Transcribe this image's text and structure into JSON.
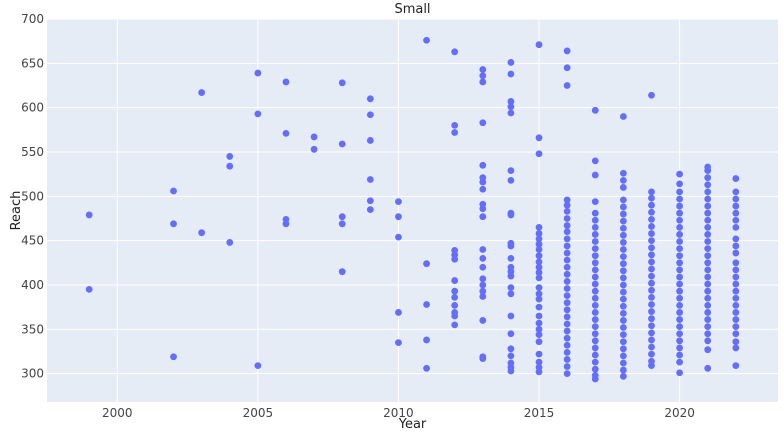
{
  "chart_data": {
    "type": "scatter",
    "title": "Small",
    "xlabel": "Year",
    "ylabel": "Reach",
    "xlim": [
      1997.5,
      2023.5
    ],
    "ylim": [
      268,
      700
    ],
    "xticks": [
      2000,
      2005,
      2010,
      2015,
      2020
    ],
    "xtick_labels": [
      "2000",
      "2005",
      "2010",
      "2015",
      "2020"
    ],
    "yticks": [
      300,
      350,
      400,
      450,
      500,
      550,
      600,
      650,
      700
    ],
    "ytick_labels": [
      "300",
      "350",
      "400",
      "450",
      "500",
      "550",
      "600",
      "650",
      "700"
    ],
    "grid": true,
    "legend": "none",
    "colors": {
      "marker": "#636efa",
      "plot_bg": "#e5ecf6",
      "grid": "#ffffff"
    },
    "series": [
      {
        "points": [
          [
            1999,
            479
          ],
          [
            1999,
            395
          ],
          [
            2002,
            506
          ],
          [
            2002,
            469
          ],
          [
            2002,
            319
          ],
          [
            2003,
            617
          ],
          [
            2003,
            459
          ],
          [
            2004,
            545
          ],
          [
            2004,
            534
          ],
          [
            2004,
            448
          ],
          [
            2005,
            639
          ],
          [
            2005,
            593
          ],
          [
            2005,
            309
          ],
          [
            2006,
            629
          ],
          [
            2006,
            571
          ],
          [
            2006,
            474
          ],
          [
            2006,
            469
          ],
          [
            2007,
            567
          ],
          [
            2007,
            553
          ],
          [
            2008,
            628
          ],
          [
            2008,
            559
          ],
          [
            2008,
            477
          ],
          [
            2008,
            469
          ],
          [
            2008,
            415
          ],
          [
            2009,
            610
          ],
          [
            2009,
            592
          ],
          [
            2009,
            563
          ],
          [
            2009,
            519
          ],
          [
            2009,
            495
          ],
          [
            2009,
            485
          ],
          [
            2010,
            494
          ],
          [
            2010,
            477
          ],
          [
            2010,
            454
          ],
          [
            2010,
            369
          ],
          [
            2010,
            335
          ],
          [
            2011,
            676
          ],
          [
            2011,
            424
          ],
          [
            2011,
            378
          ],
          [
            2011,
            338
          ],
          [
            2011,
            306
          ],
          [
            2012,
            663
          ],
          [
            2012,
            580
          ],
          [
            2012,
            572
          ],
          [
            2012,
            439
          ],
          [
            2012,
            434
          ],
          [
            2012,
            429
          ],
          [
            2012,
            405
          ],
          [
            2012,
            393
          ],
          [
            2012,
            386
          ],
          [
            2012,
            377
          ],
          [
            2012,
            369
          ],
          [
            2012,
            365
          ],
          [
            2012,
            355
          ],
          [
            2013,
            643
          ],
          [
            2013,
            636
          ],
          [
            2013,
            629
          ],
          [
            2013,
            583
          ],
          [
            2013,
            535
          ],
          [
            2013,
            521
          ],
          [
            2013,
            516
          ],
          [
            2013,
            508
          ],
          [
            2013,
            491
          ],
          [
            2013,
            486
          ],
          [
            2013,
            477
          ],
          [
            2013,
            440
          ],
          [
            2013,
            430
          ],
          [
            2013,
            420
          ],
          [
            2013,
            407
          ],
          [
            2013,
            400
          ],
          [
            2013,
            393
          ],
          [
            2013,
            387
          ],
          [
            2013,
            360
          ],
          [
            2013,
            319
          ],
          [
            2013,
            317
          ],
          [
            2014,
            651
          ],
          [
            2014,
            638
          ],
          [
            2014,
            607
          ],
          [
            2014,
            601
          ],
          [
            2014,
            594
          ],
          [
            2014,
            529
          ],
          [
            2014,
            518
          ],
          [
            2014,
            481
          ],
          [
            2014,
            479
          ],
          [
            2014,
            447
          ],
          [
            2014,
            444
          ],
          [
            2014,
            430
          ],
          [
            2014,
            420
          ],
          [
            2014,
            415
          ],
          [
            2014,
            410
          ],
          [
            2014,
            397
          ],
          [
            2014,
            390
          ],
          [
            2014,
            365
          ],
          [
            2014,
            345
          ],
          [
            2014,
            328
          ],
          [
            2014,
            320
          ],
          [
            2014,
            312
          ],
          [
            2014,
            307
          ],
          [
            2014,
            303
          ],
          [
            2015,
            671
          ],
          [
            2015,
            566
          ],
          [
            2015,
            548
          ],
          [
            2015,
            465
          ],
          [
            2015,
            458
          ],
          [
            2015,
            452
          ],
          [
            2015,
            446
          ],
          [
            2015,
            440
          ],
          [
            2015,
            433
          ],
          [
            2015,
            426
          ],
          [
            2015,
            420
          ],
          [
            2015,
            414
          ],
          [
            2015,
            408
          ],
          [
            2015,
            397
          ],
          [
            2015,
            390
          ],
          [
            2015,
            384
          ],
          [
            2015,
            375
          ],
          [
            2015,
            365
          ],
          [
            2015,
            357
          ],
          [
            2015,
            350
          ],
          [
            2015,
            344
          ],
          [
            2015,
            336
          ],
          [
            2015,
            322
          ],
          [
            2015,
            313
          ],
          [
            2015,
            307
          ],
          [
            2015,
            302
          ],
          [
            2016,
            664
          ],
          [
            2016,
            645
          ],
          [
            2016,
            625
          ],
          [
            2016,
            496
          ],
          [
            2016,
            490
          ],
          [
            2016,
            483
          ],
          [
            2016,
            475
          ],
          [
            2016,
            467
          ],
          [
            2016,
            460
          ],
          [
            2016,
            452
          ],
          [
            2016,
            444
          ],
          [
            2016,
            436
          ],
          [
            2016,
            428
          ],
          [
            2016,
            420
          ],
          [
            2016,
            412
          ],
          [
            2016,
            404
          ],
          [
            2016,
            396
          ],
          [
            2016,
            388
          ],
          [
            2016,
            380
          ],
          [
            2016,
            372
          ],
          [
            2016,
            364
          ],
          [
            2016,
            356
          ],
          [
            2016,
            348
          ],
          [
            2016,
            340
          ],
          [
            2016,
            332
          ],
          [
            2016,
            324
          ],
          [
            2016,
            316
          ],
          [
            2016,
            308
          ],
          [
            2016,
            300
          ],
          [
            2017,
            597
          ],
          [
            2017,
            540
          ],
          [
            2017,
            524
          ],
          [
            2017,
            494
          ],
          [
            2017,
            481
          ],
          [
            2017,
            473
          ],
          [
            2017,
            465
          ],
          [
            2017,
            457
          ],
          [
            2017,
            449
          ],
          [
            2017,
            441
          ],
          [
            2017,
            433
          ],
          [
            2017,
            425
          ],
          [
            2017,
            417
          ],
          [
            2017,
            409
          ],
          [
            2017,
            401
          ],
          [
            2017,
            393
          ],
          [
            2017,
            385
          ],
          [
            2017,
            377
          ],
          [
            2017,
            369
          ],
          [
            2017,
            361
          ],
          [
            2017,
            353
          ],
          [
            2017,
            345
          ],
          [
            2017,
            337
          ],
          [
            2017,
            329
          ],
          [
            2017,
            321
          ],
          [
            2017,
            313
          ],
          [
            2017,
            305
          ],
          [
            2017,
            298
          ],
          [
            2017,
            294
          ],
          [
            2018,
            590
          ],
          [
            2018,
            526
          ],
          [
            2018,
            518
          ],
          [
            2018,
            510
          ],
          [
            2018,
            496
          ],
          [
            2018,
            488
          ],
          [
            2018,
            480
          ],
          [
            2018,
            472
          ],
          [
            2018,
            464
          ],
          [
            2018,
            456
          ],
          [
            2018,
            448
          ],
          [
            2018,
            440
          ],
          [
            2018,
            432
          ],
          [
            2018,
            424
          ],
          [
            2018,
            416
          ],
          [
            2018,
            408
          ],
          [
            2018,
            400
          ],
          [
            2018,
            392
          ],
          [
            2018,
            384
          ],
          [
            2018,
            376
          ],
          [
            2018,
            368
          ],
          [
            2018,
            360
          ],
          [
            2018,
            352
          ],
          [
            2018,
            344
          ],
          [
            2018,
            336
          ],
          [
            2018,
            328
          ],
          [
            2018,
            320
          ],
          [
            2018,
            312
          ],
          [
            2018,
            304
          ],
          [
            2018,
            297
          ],
          [
            2019,
            614
          ],
          [
            2019,
            505
          ],
          [
            2019,
            498
          ],
          [
            2019,
            490
          ],
          [
            2019,
            482
          ],
          [
            2019,
            474
          ],
          [
            2019,
            466
          ],
          [
            2019,
            458
          ],
          [
            2019,
            450
          ],
          [
            2019,
            442
          ],
          [
            2019,
            434
          ],
          [
            2019,
            426
          ],
          [
            2019,
            418
          ],
          [
            2019,
            410
          ],
          [
            2019,
            402
          ],
          [
            2019,
            394
          ],
          [
            2019,
            386
          ],
          [
            2019,
            378
          ],
          [
            2019,
            370
          ],
          [
            2019,
            362
          ],
          [
            2019,
            354
          ],
          [
            2019,
            346
          ],
          [
            2019,
            338
          ],
          [
            2019,
            330
          ],
          [
            2019,
            322
          ],
          [
            2019,
            314
          ],
          [
            2019,
            309
          ],
          [
            2020,
            525
          ],
          [
            2020,
            514
          ],
          [
            2020,
            505
          ],
          [
            2020,
            497
          ],
          [
            2020,
            489
          ],
          [
            2020,
            481
          ],
          [
            2020,
            473
          ],
          [
            2020,
            465
          ],
          [
            2020,
            457
          ],
          [
            2020,
            449
          ],
          [
            2020,
            441
          ],
          [
            2020,
            433
          ],
          [
            2020,
            425
          ],
          [
            2020,
            417
          ],
          [
            2020,
            409
          ],
          [
            2020,
            401
          ],
          [
            2020,
            393
          ],
          [
            2020,
            385
          ],
          [
            2020,
            377
          ],
          [
            2020,
            369
          ],
          [
            2020,
            361
          ],
          [
            2020,
            353
          ],
          [
            2020,
            345
          ],
          [
            2020,
            337
          ],
          [
            2020,
            329
          ],
          [
            2020,
            321
          ],
          [
            2020,
            313
          ],
          [
            2020,
            301
          ],
          [
            2021,
            533
          ],
          [
            2021,
            529
          ],
          [
            2021,
            521
          ],
          [
            2021,
            513
          ],
          [
            2021,
            505
          ],
          [
            2021,
            497
          ],
          [
            2021,
            489
          ],
          [
            2021,
            481
          ],
          [
            2021,
            473
          ],
          [
            2021,
            465
          ],
          [
            2021,
            457
          ],
          [
            2021,
            449
          ],
          [
            2021,
            441
          ],
          [
            2021,
            433
          ],
          [
            2021,
            425
          ],
          [
            2021,
            417
          ],
          [
            2021,
            409
          ],
          [
            2021,
            401
          ],
          [
            2021,
            393
          ],
          [
            2021,
            385
          ],
          [
            2021,
            377
          ],
          [
            2021,
            369
          ],
          [
            2021,
            361
          ],
          [
            2021,
            353
          ],
          [
            2021,
            345
          ],
          [
            2021,
            337
          ],
          [
            2021,
            327
          ],
          [
            2021,
            306
          ],
          [
            2022,
            520
          ],
          [
            2022,
            505
          ],
          [
            2022,
            497
          ],
          [
            2022,
            489
          ],
          [
            2022,
            481
          ],
          [
            2022,
            473
          ],
          [
            2022,
            465
          ],
          [
            2022,
            452
          ],
          [
            2022,
            444
          ],
          [
            2022,
            436
          ],
          [
            2022,
            425
          ],
          [
            2022,
            417
          ],
          [
            2022,
            409
          ],
          [
            2022,
            401
          ],
          [
            2022,
            393
          ],
          [
            2022,
            385
          ],
          [
            2022,
            377
          ],
          [
            2022,
            369
          ],
          [
            2022,
            361
          ],
          [
            2022,
            353
          ],
          [
            2022,
            345
          ],
          [
            2022,
            336
          ],
          [
            2022,
            329
          ],
          [
            2022,
            309
          ]
        ]
      }
    ]
  }
}
